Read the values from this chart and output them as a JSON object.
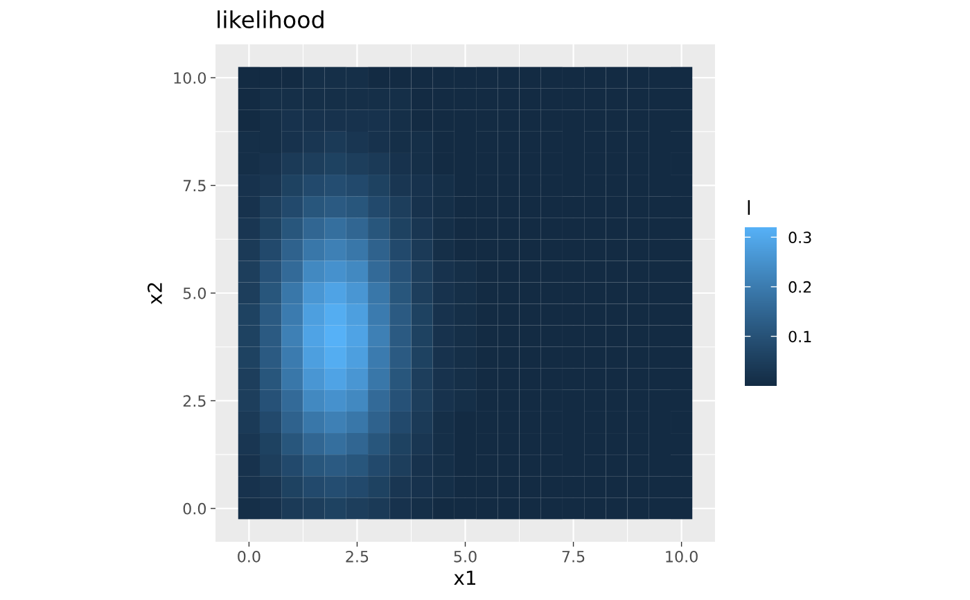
{
  "chart_data": {
    "type": "heatmap",
    "title": "likelihood",
    "xlabel": "x1",
    "ylabel": "x2",
    "clabel": "l",
    "categories": [
      "0.0",
      null,
      null,
      null,
      null,
      "2.5",
      null,
      null,
      null,
      null,
      "5.0",
      null,
      null,
      null,
      null,
      "7.5",
      null,
      null,
      null,
      null,
      "10.0"
    ],
    "y_categories": [
      "10.0",
      null,
      null,
      null,
      null,
      "7.5",
      null,
      null,
      null,
      null,
      "5.0",
      null,
      null,
      null,
      null,
      "2.5",
      null,
      null,
      null,
      null,
      "0.0"
    ],
    "cells": [
      [
        0,
        0,
        0,
        0.01,
        0.01,
        0.01,
        0,
        0,
        0,
        0,
        0,
        0,
        0,
        0,
        0,
        0,
        0,
        0,
        0,
        0,
        0
      ],
      [
        0,
        0.01,
        0.01,
        0.01,
        0.01,
        0.01,
        0.01,
        0.01,
        0,
        0,
        0,
        0,
        0,
        0,
        0,
        0,
        0,
        0,
        0,
        0,
        0
      ],
      [
        0,
        0.01,
        0.02,
        0.02,
        0.02,
        0.02,
        0.02,
        0.01,
        0,
        0,
        0,
        0,
        0,
        0,
        0,
        0,
        0,
        0,
        0,
        0,
        0
      ],
      [
        0.01,
        0.01,
        0.02,
        0.03,
        0.04,
        0.03,
        0.02,
        0.01,
        0.01,
        0,
        0,
        0,
        0,
        0,
        0,
        0,
        0,
        0,
        0,
        0,
        0
      ],
      [
        0.01,
        0.02,
        0.04,
        0.05,
        0.06,
        0.05,
        0.04,
        0.02,
        0.01,
        0,
        0,
        0,
        0,
        0,
        0,
        0,
        0,
        0,
        0,
        0,
        0
      ],
      [
        0.02,
        0.03,
        0.06,
        0.08,
        0.09,
        0.08,
        0.06,
        0.03,
        0.02,
        0.01,
        0,
        0,
        0,
        0,
        0,
        0,
        0,
        0,
        0,
        0,
        0
      ],
      [
        0.02,
        0.05,
        0.08,
        0.11,
        0.12,
        0.11,
        0.08,
        0.05,
        0.02,
        0.01,
        0,
        0,
        0,
        0,
        0,
        0,
        0,
        0,
        0,
        0,
        0
      ],
      [
        0.03,
        0.06,
        0.11,
        0.15,
        0.17,
        0.15,
        0.11,
        0.06,
        0.03,
        0.01,
        0,
        0,
        0,
        0,
        0,
        0,
        0,
        0,
        0,
        0,
        0
      ],
      [
        0.04,
        0.08,
        0.14,
        0.19,
        0.21,
        0.19,
        0.14,
        0.08,
        0.04,
        0.01,
        0,
        0,
        0,
        0,
        0,
        0,
        0,
        0,
        0,
        0,
        0
      ],
      [
        0.05,
        0.1,
        0.16,
        0.23,
        0.25,
        0.23,
        0.16,
        0.1,
        0.05,
        0.02,
        0.01,
        0,
        0,
        0,
        0,
        0,
        0,
        0,
        0,
        0,
        0
      ],
      [
        0.05,
        0.11,
        0.19,
        0.26,
        0.29,
        0.26,
        0.19,
        0.11,
        0.05,
        0.02,
        0.01,
        0,
        0,
        0,
        0,
        0,
        0,
        0,
        0,
        0,
        0
      ],
      [
        0.06,
        0.12,
        0.2,
        0.28,
        0.31,
        0.28,
        0.2,
        0.12,
        0.06,
        0.02,
        0.01,
        0,
        0,
        0,
        0,
        0,
        0,
        0,
        0,
        0,
        0
      ],
      [
        0.06,
        0.12,
        0.21,
        0.29,
        0.32,
        0.29,
        0.21,
        0.12,
        0.06,
        0.02,
        0.01,
        0,
        0,
        0,
        0,
        0,
        0,
        0,
        0,
        0,
        0
      ],
      [
        0.06,
        0.12,
        0.2,
        0.28,
        0.31,
        0.28,
        0.2,
        0.12,
        0.06,
        0.02,
        0.01,
        0,
        0,
        0,
        0,
        0,
        0,
        0,
        0,
        0,
        0
      ],
      [
        0.05,
        0.11,
        0.19,
        0.26,
        0.29,
        0.26,
        0.19,
        0.11,
        0.05,
        0.02,
        0.01,
        0,
        0,
        0,
        0,
        0,
        0,
        0,
        0,
        0,
        0
      ],
      [
        0.05,
        0.1,
        0.16,
        0.23,
        0.25,
        0.23,
        0.16,
        0.1,
        0.05,
        0.02,
        0.01,
        0,
        0,
        0,
        0,
        0,
        0,
        0,
        0,
        0,
        0
      ],
      [
        0.04,
        0.08,
        0.14,
        0.19,
        0.21,
        0.19,
        0.14,
        0.08,
        0.04,
        0.01,
        0,
        0,
        0,
        0,
        0,
        0,
        0,
        0,
        0,
        0,
        0
      ],
      [
        0.03,
        0.06,
        0.11,
        0.15,
        0.17,
        0.15,
        0.11,
        0.06,
        0.03,
        0.01,
        0,
        0,
        0,
        0,
        0,
        0,
        0,
        0,
        0,
        0,
        0
      ],
      [
        0.02,
        0.05,
        0.08,
        0.11,
        0.12,
        0.11,
        0.08,
        0.05,
        0.02,
        0.01,
        0,
        0,
        0,
        0,
        0,
        0,
        0,
        0,
        0,
        0,
        0
      ],
      [
        0.02,
        0.03,
        0.06,
        0.08,
        0.09,
        0.08,
        0.06,
        0.03,
        0.02,
        0.01,
        0,
        0,
        0,
        0,
        0,
        0,
        0,
        0,
        0,
        0,
        0
      ],
      [
        0.01,
        0.02,
        0.04,
        0.05,
        0.06,
        0.05,
        0.04,
        0.02,
        0.01,
        0,
        0,
        0,
        0,
        0,
        0,
        0,
        0,
        0,
        0,
        0,
        0
      ]
    ],
    "clim": [
      0,
      0.32
    ],
    "cticks": [
      0.1,
      0.2,
      0.3
    ],
    "grid": true
  }
}
